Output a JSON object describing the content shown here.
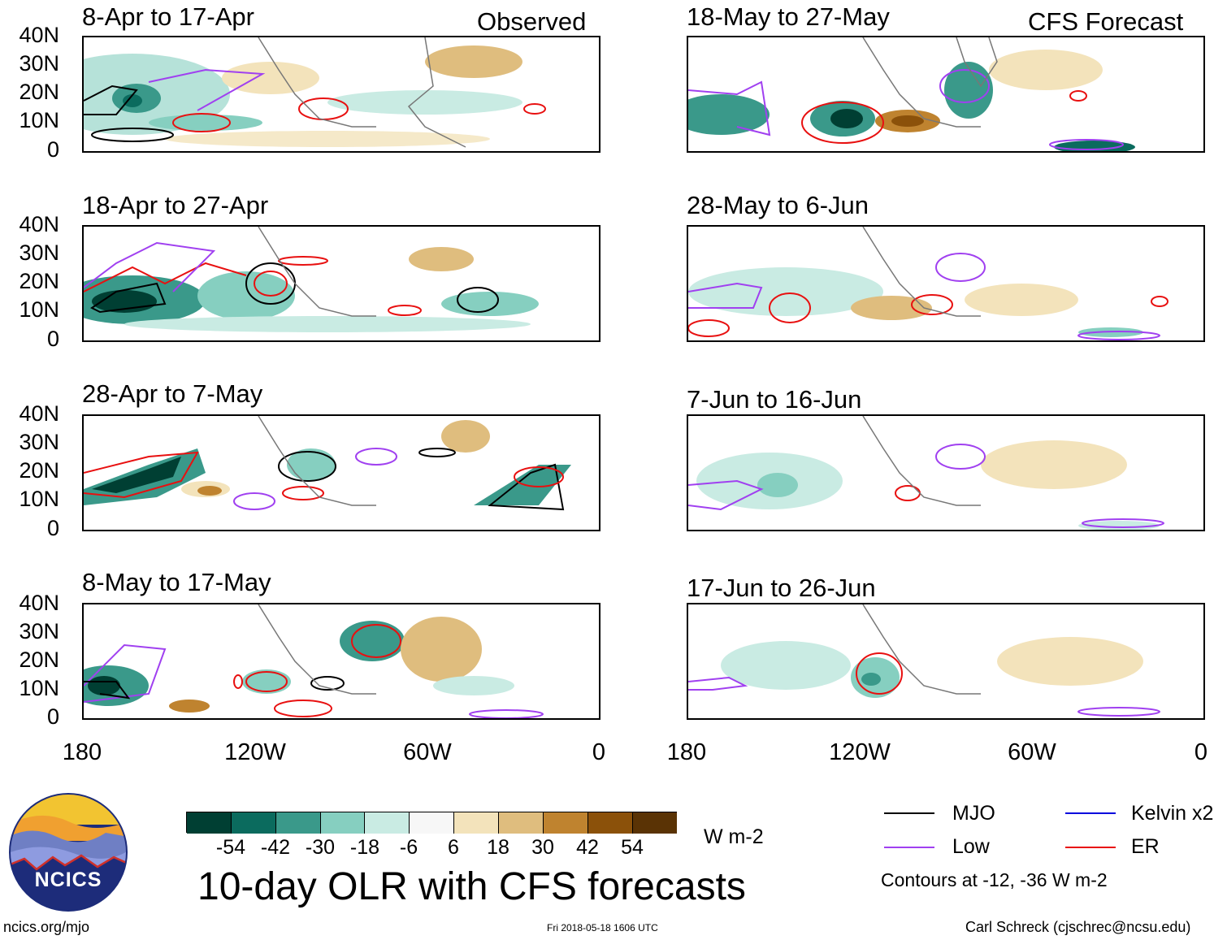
{
  "headers": {
    "left": "Observed",
    "right": "CFS Forecast"
  },
  "panels": [
    {
      "title": "8-Apr to 17-Apr"
    },
    {
      "title": "18-May to 27-May"
    },
    {
      "title": "18-Apr to 27-Apr"
    },
    {
      "title": "28-May to 6-Jun"
    },
    {
      "title": "28-Apr to 7-May"
    },
    {
      "title": "7-Jun to 16-Jun"
    },
    {
      "title": "8-May to 17-May"
    },
    {
      "title": "17-Jun to 26-Jun"
    }
  ],
  "y_ticks": [
    "40N",
    "30N",
    "20N",
    "10N",
    "0"
  ],
  "x_ticks": [
    "180",
    "120W",
    "60W",
    "0"
  ],
  "colorbar": {
    "labels": [
      "-54",
      "-42",
      "-30",
      "-18",
      "-6",
      "6",
      "18",
      "30",
      "42",
      "54"
    ],
    "colors": [
      "#003f33",
      "#0b6b5e",
      "#3a998a",
      "#86cfc0",
      "#c9ebe3",
      "#f7f7f7",
      "#f3e3bb",
      "#dfbd7e",
      "#bf832f",
      "#8b510a",
      "#5a3305"
    ],
    "units": "W m-2"
  },
  "legend": {
    "items": [
      {
        "label": "MJO",
        "color": "#000000"
      },
      {
        "label": "Kelvin x2",
        "color": "#0000dd"
      },
      {
        "label": "Low",
        "color": "#a040f0"
      },
      {
        "label": "ER",
        "color": "#e81010"
      }
    ],
    "note": "Contours at -12, -36 W m-2"
  },
  "main_title": "10-day OLR with CFS forecasts",
  "footer": {
    "left": "ncics.org/mjo",
    "center": "Fri 2018-05-18 1606 UTC",
    "right": "Carl Schreck (cjschrec@ncsu.edu)"
  },
  "logo_text": "NCICS",
  "chart_data": {
    "type": "heatmap",
    "title": "10-day OLR with CFS forecasts",
    "xlabel": "",
    "ylabel": "",
    "x_range": [
      "180",
      "0"
    ],
    "y_range": [
      "0",
      "40N"
    ],
    "x_ticks": [
      "180",
      "120W",
      "60W",
      "0"
    ],
    "y_ticks": [
      "0",
      "10N",
      "20N",
      "30N",
      "40N"
    ],
    "color_levels": [
      -54,
      -42,
      -30,
      -18,
      -6,
      6,
      18,
      30,
      42,
      54
    ],
    "contour_levels": [
      -12,
      -36
    ],
    "units": "W m-2"
  }
}
